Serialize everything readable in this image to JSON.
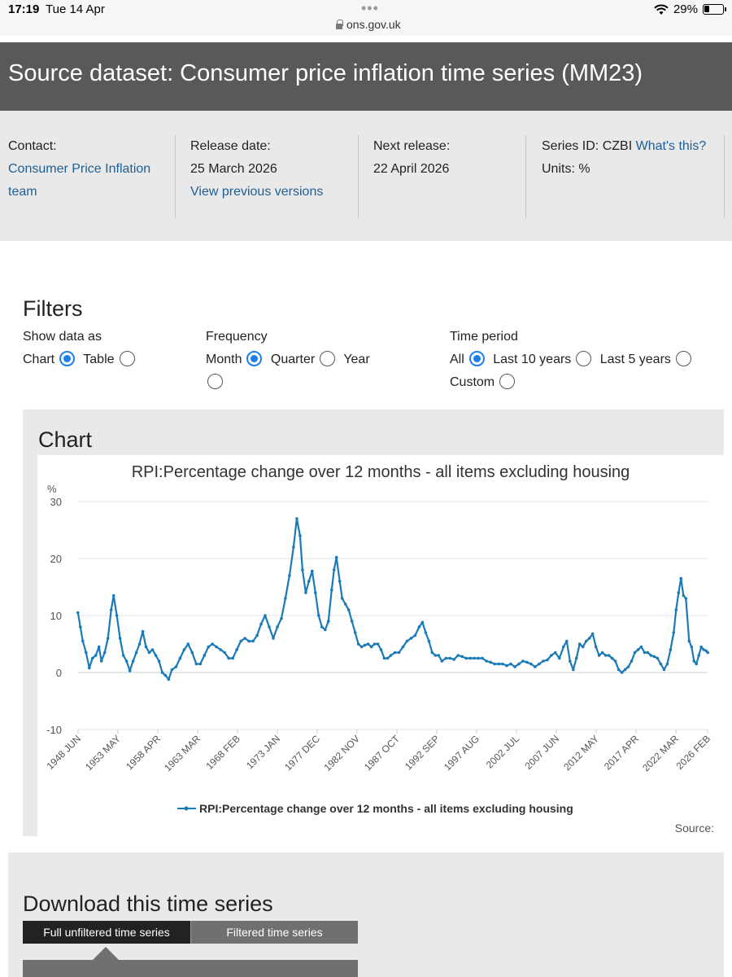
{
  "status_bar": {
    "time": "17:19",
    "date": "Tue 14 Apr",
    "dots": "•••",
    "url": "ons.gov.uk",
    "battery": "29%",
    "battery_level": 0.29
  },
  "header": {
    "title": "Source dataset: Consumer price inflation time series (MM23)"
  },
  "meta": {
    "contact_label": "Contact:",
    "contact_line1": "Consumer Price Inflation",
    "contact_line2": "team",
    "release_label": "Release date:",
    "release_value": "25 March 2026",
    "previous_versions": "View previous versions",
    "next_label": "Next release:",
    "next_value": "22 April 2026",
    "series_id": "Series ID: CZBI",
    "whats_this": "What's this?",
    "units": "Units: %"
  },
  "filters": {
    "title": "Filters",
    "show_label": "Show data as",
    "show_options": [
      "Chart",
      "Table"
    ],
    "show_selected": "Chart",
    "frequency_label": "Frequency",
    "frequency_options": [
      "Month",
      "Quarter",
      "Year"
    ],
    "frequency_selected": "Month",
    "period_label": "Time period",
    "period_options": [
      "All",
      "Last 10 years",
      "Last 5 years",
      "Custom"
    ],
    "period_selected": "All"
  },
  "chart_section": {
    "heading": "Chart",
    "source": "Source:"
  },
  "chart_data": {
    "type": "line",
    "title": "RPI:Percentage change over 12 months - all items excluding housing",
    "ylabel": "%",
    "xlabel": "",
    "ylim": [
      -10,
      30
    ],
    "yticks": [
      -10,
      0,
      10,
      20,
      30
    ],
    "x_range": [
      1948.42,
      2026.08
    ],
    "xticks": [
      {
        "label": "1948 JUN",
        "x": 1948.42
      },
      {
        "label": "1953 MAY",
        "x": 1953.33
      },
      {
        "label": "1958 APR",
        "x": 1958.25
      },
      {
        "label": "1963 MAR",
        "x": 1963.17
      },
      {
        "label": "1968 FEB",
        "x": 1968.08
      },
      {
        "label": "1973 JAN",
        "x": 1973.0
      },
      {
        "label": "1977 DEC",
        "x": 1977.92
      },
      {
        "label": "1982 NOV",
        "x": 1982.83
      },
      {
        "label": "1987 OCT",
        "x": 1987.75
      },
      {
        "label": "1992 SEP",
        "x": 1992.67
      },
      {
        "label": "1997 AUG",
        "x": 1997.58
      },
      {
        "label": "2002 JUL",
        "x": 2002.5
      },
      {
        "label": "2007 JUN",
        "x": 2007.42
      },
      {
        "label": "2012 MAY",
        "x": 2012.33
      },
      {
        "label": "2017 APR",
        "x": 2017.25
      },
      {
        "label": "2022 MAR",
        "x": 2022.17
      },
      {
        "label": "2026 FEB",
        "x": 2026.08
      }
    ],
    "grid": true,
    "legend": "bottom",
    "series": [
      {
        "name": "RPI:Percentage change over 12 months - all items excluding housing",
        "color": "#1a7ab8",
        "points": [
          [
            1948.4,
            10.5
          ],
          [
            1948.7,
            8.0
          ],
          [
            1949.0,
            5.5
          ],
          [
            1949.4,
            3.5
          ],
          [
            1949.8,
            0.8
          ],
          [
            1950.2,
            2.5
          ],
          [
            1950.6,
            3.0
          ],
          [
            1951.0,
            4.5
          ],
          [
            1951.3,
            2.0
          ],
          [
            1951.7,
            3.5
          ],
          [
            1952.1,
            6.0
          ],
          [
            1952.5,
            11.0
          ],
          [
            1952.8,
            13.5
          ],
          [
            1953.2,
            10.0
          ],
          [
            1953.6,
            6.0
          ],
          [
            1954.0,
            3.0
          ],
          [
            1954.4,
            2.0
          ],
          [
            1954.8,
            0.3
          ],
          [
            1955.2,
            2.0
          ],
          [
            1955.6,
            3.5
          ],
          [
            1956.0,
            5.0
          ],
          [
            1956.4,
            7.2
          ],
          [
            1956.8,
            4.5
          ],
          [
            1957.2,
            3.5
          ],
          [
            1957.6,
            4.0
          ],
          [
            1958.0,
            3.0
          ],
          [
            1958.4,
            2.0
          ],
          [
            1958.8,
            0.0
          ],
          [
            1959.2,
            -0.5
          ],
          [
            1959.6,
            -1.2
          ],
          [
            1960.0,
            0.5
          ],
          [
            1960.5,
            1.0
          ],
          [
            1961.0,
            2.5
          ],
          [
            1961.5,
            4.0
          ],
          [
            1962.0,
            5.0
          ],
          [
            1962.5,
            3.5
          ],
          [
            1963.0,
            1.5
          ],
          [
            1963.5,
            1.5
          ],
          [
            1964.0,
            3.0
          ],
          [
            1964.5,
            4.5
          ],
          [
            1965.0,
            5.0
          ],
          [
            1965.5,
            4.5
          ],
          [
            1966.0,
            4.0
          ],
          [
            1966.5,
            3.5
          ],
          [
            1967.0,
            2.5
          ],
          [
            1967.5,
            2.5
          ],
          [
            1968.0,
            4.0
          ],
          [
            1968.5,
            5.5
          ],
          [
            1969.0,
            6.0
          ],
          [
            1969.5,
            5.5
          ],
          [
            1970.0,
            5.5
          ],
          [
            1970.5,
            6.5
          ],
          [
            1971.0,
            8.5
          ],
          [
            1971.5,
            10.0
          ],
          [
            1972.0,
            8.0
          ],
          [
            1972.5,
            6.0
          ],
          [
            1973.0,
            8.0
          ],
          [
            1973.5,
            9.5
          ],
          [
            1974.0,
            13.0
          ],
          [
            1974.5,
            17.0
          ],
          [
            1975.0,
            22.0
          ],
          [
            1975.4,
            27.0
          ],
          [
            1975.8,
            24.0
          ],
          [
            1976.1,
            18.0
          ],
          [
            1976.5,
            14.0
          ],
          [
            1976.9,
            16.0
          ],
          [
            1977.3,
            17.8
          ],
          [
            1977.7,
            14.0
          ],
          [
            1978.1,
            10.0
          ],
          [
            1978.5,
            8.0
          ],
          [
            1978.9,
            7.5
          ],
          [
            1979.3,
            9.0
          ],
          [
            1979.7,
            14.5
          ],
          [
            1980.0,
            18.0
          ],
          [
            1980.3,
            20.2
          ],
          [
            1980.7,
            16.0
          ],
          [
            1981.0,
            13.0
          ],
          [
            1981.4,
            12.0
          ],
          [
            1981.8,
            11.0
          ],
          [
            1982.2,
            9.0
          ],
          [
            1982.6,
            7.0
          ],
          [
            1983.0,
            5.0
          ],
          [
            1983.4,
            4.5
          ],
          [
            1983.8,
            4.8
          ],
          [
            1984.2,
            5.0
          ],
          [
            1984.6,
            4.5
          ],
          [
            1985.0,
            5.0
          ],
          [
            1985.4,
            5.0
          ],
          [
            1985.8,
            4.0
          ],
          [
            1986.2,
            2.5
          ],
          [
            1986.6,
            2.5
          ],
          [
            1987.0,
            3.0
          ],
          [
            1987.5,
            3.5
          ],
          [
            1988.0,
            3.5
          ],
          [
            1988.5,
            4.5
          ],
          [
            1989.0,
            5.5
          ],
          [
            1989.5,
            6.0
          ],
          [
            1990.0,
            6.5
          ],
          [
            1990.5,
            8.0
          ],
          [
            1990.9,
            8.8
          ],
          [
            1991.3,
            7.0
          ],
          [
            1991.7,
            5.5
          ],
          [
            1992.1,
            3.5
          ],
          [
            1992.5,
            3.0
          ],
          [
            1992.9,
            3.0
          ],
          [
            1993.3,
            2.0
          ],
          [
            1993.8,
            2.5
          ],
          [
            1994.3,
            2.5
          ],
          [
            1994.8,
            2.3
          ],
          [
            1995.3,
            3.0
          ],
          [
            1995.8,
            2.8
          ],
          [
            1996.3,
            2.5
          ],
          [
            1996.8,
            2.5
          ],
          [
            1997.3,
            2.5
          ],
          [
            1997.8,
            2.5
          ],
          [
            1998.3,
            2.5
          ],
          [
            1998.8,
            2.0
          ],
          [
            1999.3,
            1.8
          ],
          [
            1999.8,
            1.5
          ],
          [
            2000.3,
            1.5
          ],
          [
            2000.8,
            1.5
          ],
          [
            2001.3,
            1.2
          ],
          [
            2001.8,
            1.5
          ],
          [
            2002.3,
            1.0
          ],
          [
            2002.8,
            1.5
          ],
          [
            2003.3,
            2.0
          ],
          [
            2003.8,
            1.8
          ],
          [
            2004.3,
            1.5
          ],
          [
            2004.8,
            1.0
          ],
          [
            2005.3,
            1.5
          ],
          [
            2005.8,
            2.0
          ],
          [
            2006.3,
            2.2
          ],
          [
            2006.8,
            3.0
          ],
          [
            2007.3,
            3.5
          ],
          [
            2007.8,
            2.5
          ],
          [
            2008.3,
            4.5
          ],
          [
            2008.7,
            5.5
          ],
          [
            2009.1,
            2.0
          ],
          [
            2009.5,
            0.5
          ],
          [
            2009.9,
            2.5
          ],
          [
            2010.3,
            5.0
          ],
          [
            2010.7,
            4.5
          ],
          [
            2011.1,
            5.5
          ],
          [
            2011.5,
            6.0
          ],
          [
            2011.9,
            6.8
          ],
          [
            2012.3,
            4.5
          ],
          [
            2012.7,
            3.0
          ],
          [
            2013.1,
            3.5
          ],
          [
            2013.5,
            3.0
          ],
          [
            2013.9,
            3.0
          ],
          [
            2014.3,
            2.5
          ],
          [
            2014.7,
            2.0
          ],
          [
            2015.1,
            0.5
          ],
          [
            2015.5,
            0.0
          ],
          [
            2015.9,
            0.5
          ],
          [
            2016.3,
            1.0
          ],
          [
            2016.7,
            2.0
          ],
          [
            2017.1,
            3.5
          ],
          [
            2017.5,
            4.0
          ],
          [
            2017.9,
            4.5
          ],
          [
            2018.3,
            3.5
          ],
          [
            2018.7,
            3.5
          ],
          [
            2019.1,
            3.0
          ],
          [
            2019.5,
            2.8
          ],
          [
            2019.9,
            2.5
          ],
          [
            2020.3,
            1.5
          ],
          [
            2020.7,
            0.5
          ],
          [
            2021.1,
            1.5
          ],
          [
            2021.5,
            4.0
          ],
          [
            2021.9,
            7.0
          ],
          [
            2022.2,
            11.0
          ],
          [
            2022.5,
            14.0
          ],
          [
            2022.8,
            16.5
          ],
          [
            2023.1,
            13.5
          ],
          [
            2023.4,
            13.0
          ],
          [
            2023.8,
            5.5
          ],
          [
            2024.1,
            4.5
          ],
          [
            2024.4,
            2.0
          ],
          [
            2024.7,
            1.5
          ],
          [
            2025.0,
            3.0
          ],
          [
            2025.3,
            4.5
          ],
          [
            2025.6,
            4.0
          ],
          [
            2025.9,
            3.8
          ],
          [
            2026.1,
            3.5
          ]
        ]
      }
    ]
  },
  "download": {
    "heading": "Download this time series",
    "tab_full": "Full unfiltered time series",
    "tab_filtered": "Filtered time series"
  }
}
